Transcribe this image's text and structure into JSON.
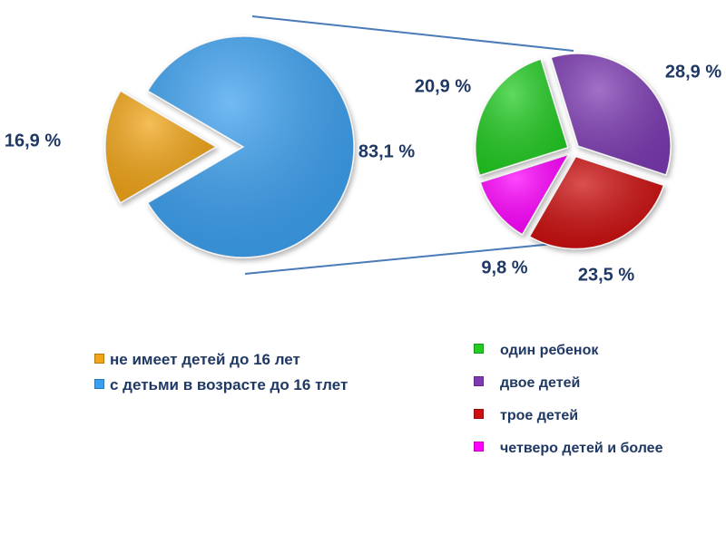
{
  "chart_data": [
    {
      "type": "pie",
      "slices": [
        {
          "label": "не имеет детей до 16 лет",
          "value": 16.9,
          "value_label": "16,9 %",
          "color": "#f2a518"
        },
        {
          "label": "с детьми в возрасте до 16 тлет",
          "value": 83.1,
          "value_label": "83,1 %",
          "color": "#3aa0f0"
        }
      ]
    },
    {
      "type": "pie",
      "slices": [
        {
          "label": "двое детей",
          "value": 28.9,
          "value_label": "28,9 %",
          "color": "#7d3ab3"
        },
        {
          "label": "трое детей",
          "value": 23.5,
          "value_label": "23,5 %",
          "color": "#cc1010"
        },
        {
          "label": "четверо детей и более",
          "value": 9.8,
          "value_label": "9,8 %",
          "color": "#ff00ff"
        },
        {
          "label": "один ребенок",
          "value": 20.9,
          "value_label": "20,9 %",
          "color": "#22cc22"
        }
      ]
    }
  ],
  "legend_left": [
    {
      "label": "не имеет детей до 16 лет",
      "color": "#f2a518"
    },
    {
      "label": "с детьми в возрасте до 16 тлет",
      "color": "#3aa0f0"
    }
  ],
  "legend_right": [
    {
      "label": "один ребенок",
      "color": "#22cc22"
    },
    {
      "label": "двое детей",
      "color": "#7d3ab3"
    },
    {
      "label": "трое детей",
      "color": "#cc1010"
    },
    {
      "label": "четверо детей и более",
      "color": "#ff00ff"
    }
  ]
}
